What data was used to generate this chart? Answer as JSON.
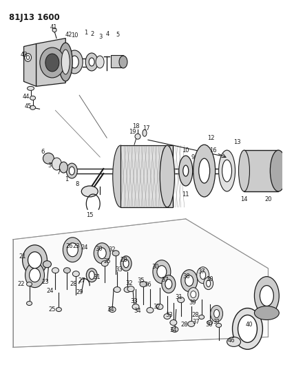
{
  "title": "81J13 1600",
  "bg_color": "#ffffff",
  "line_color": "#1a1a1a",
  "fig_width": 4.11,
  "fig_height": 5.33,
  "dpi": 100
}
